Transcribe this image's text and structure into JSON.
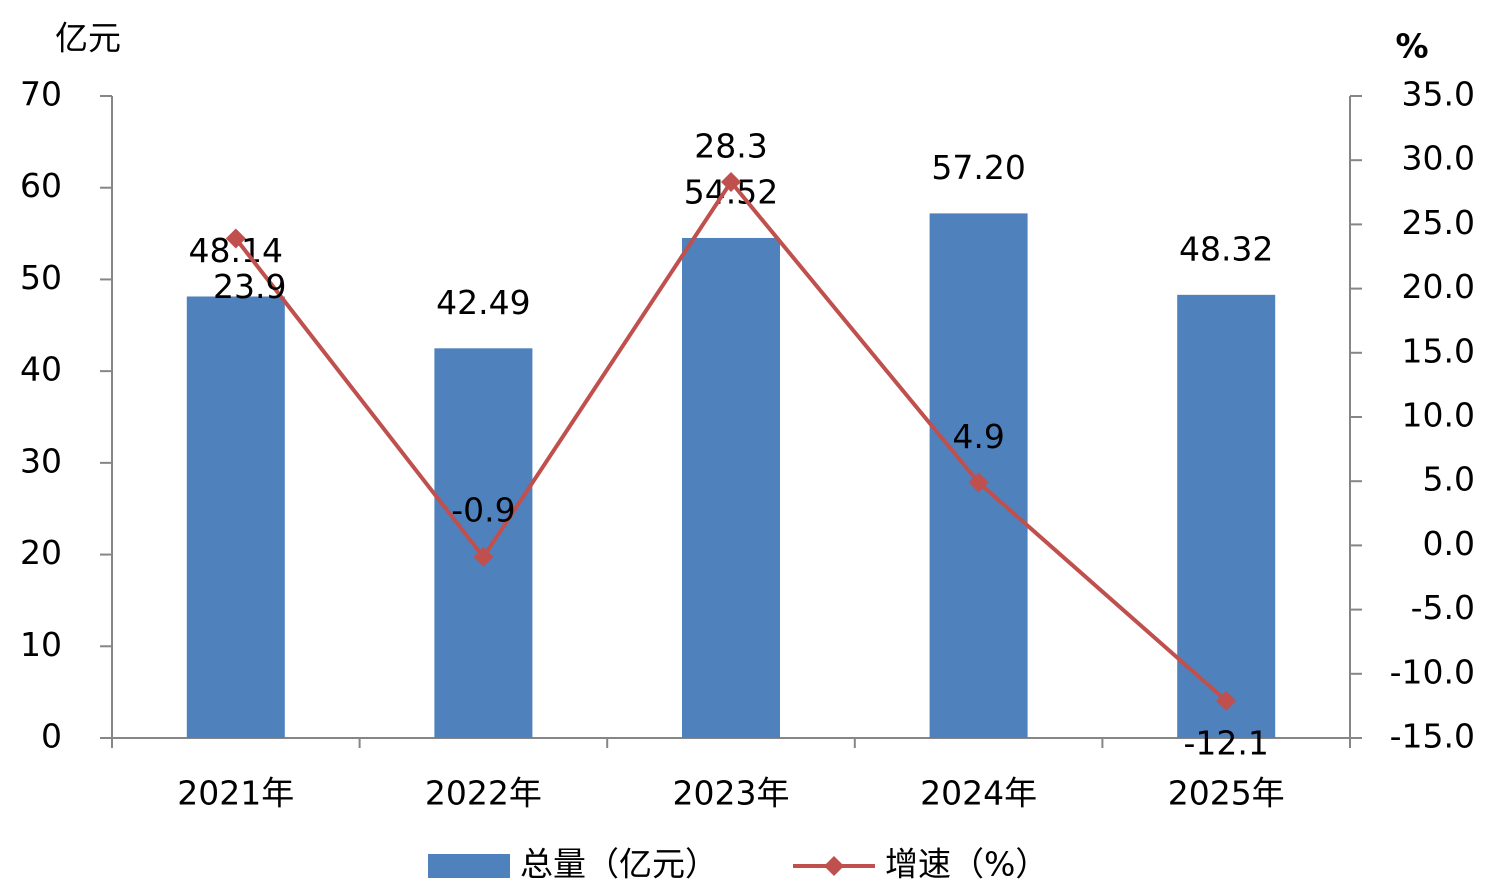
{
  "chart_data": {
    "type": "bar_line",
    "y_label": "亿元",
    "y2_label": "%",
    "categories": [
      "2021年",
      "2022年",
      "2023年",
      "2024年",
      "2025年"
    ],
    "series": [
      {
        "name": "总量（亿元）",
        "type": "bar",
        "color": "#4f81bd",
        "values": [
          48.14,
          42.49,
          54.52,
          57.2,
          48.32
        ],
        "value_labels": [
          "48.14",
          "42.49",
          "54.52",
          "57.20",
          "48.32"
        ]
      },
      {
        "name": "增速（%）",
        "type": "line",
        "axis": "y2",
        "color": "#c0504d",
        "values": [
          23.9,
          -0.9,
          28.3,
          4.9,
          -12.1
        ]
      }
    ],
    "ylim": [
      0,
      70
    ],
    "yticks": [
      0,
      10,
      20,
      30,
      40,
      50,
      60,
      70
    ],
    "y2lim": [
      -15,
      35
    ],
    "y2ticks": [
      {
        "value": 35,
        "label": "35.0"
      },
      {
        "value": 30,
        "label": "30.0"
      },
      {
        "value": 25,
        "label": "25.0"
      },
      {
        "value": 20,
        "label": "20.0"
      },
      {
        "value": 15,
        "label": "15.0"
      },
      {
        "value": 10,
        "label": "10.0"
      },
      {
        "value": 5,
        "label": "5.0"
      },
      {
        "value": 0,
        "label": "0.0"
      },
      {
        "value": -5,
        "label": "-5.0"
      },
      {
        "value": -10,
        "label": "-10.0"
      },
      {
        "value": -15,
        "label": "-15.0"
      }
    ],
    "grid": false,
    "legend": "bottom"
  }
}
